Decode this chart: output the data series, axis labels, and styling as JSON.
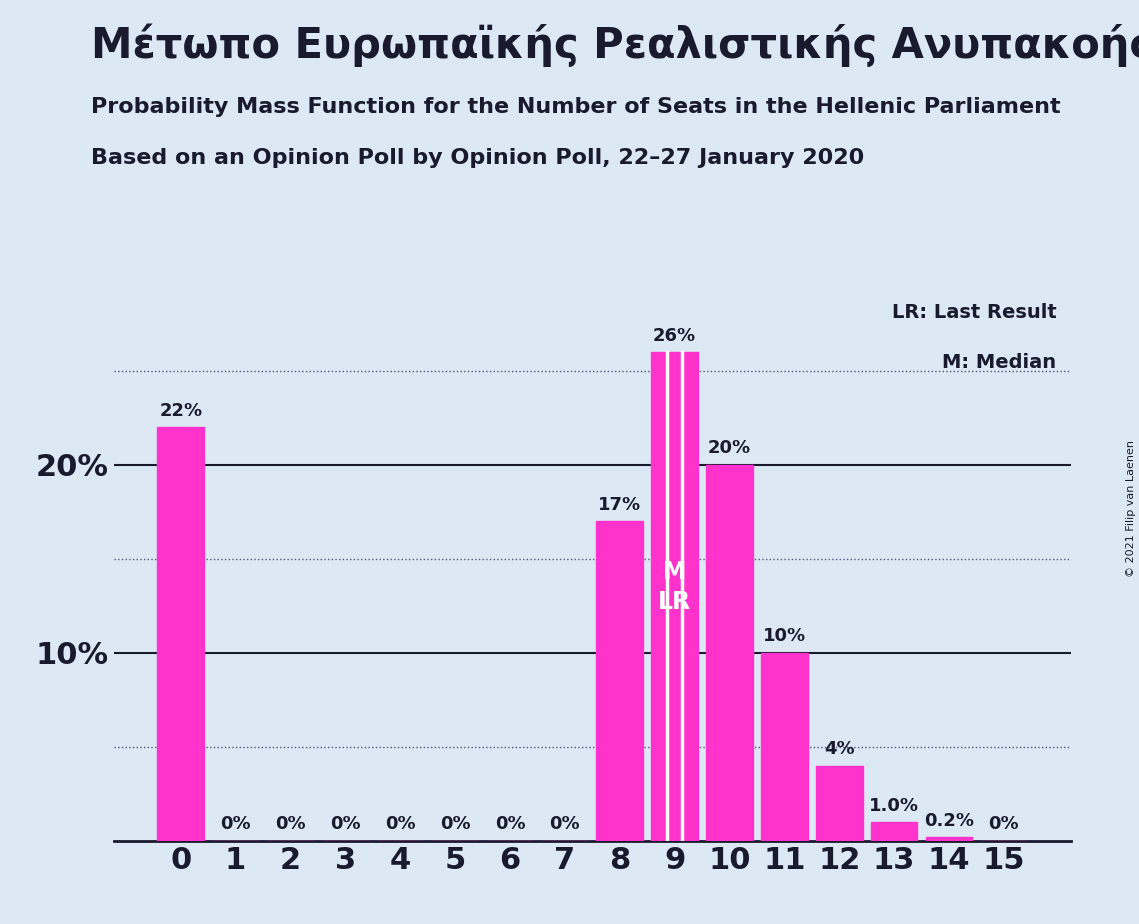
{
  "title": "Μέτωπο Ευρωπαϊκής Ρεαλιστικής Ανυπακοής",
  "subtitle1": "Probability Mass Function for the Number of Seats in the Hellenic Parliament",
  "subtitle2": "Based on an Opinion Poll by Opinion Poll, 22–27 January 2020",
  "copyright": "© 2021 Filip van Laenen",
  "categories": [
    0,
    1,
    2,
    3,
    4,
    5,
    6,
    7,
    8,
    9,
    10,
    11,
    12,
    13,
    14,
    15
  ],
  "values": [
    0.22,
    0.0,
    0.0,
    0.0,
    0.0,
    0.0,
    0.0,
    0.0,
    0.17,
    0.26,
    0.2,
    0.1,
    0.04,
    0.01,
    0.002,
    0.0
  ],
  "labels": [
    "22%",
    "0%",
    "0%",
    "0%",
    "0%",
    "0%",
    "0%",
    "0%",
    "17%",
    "26%",
    "20%",
    "10%",
    "4%",
    "1.0%",
    "0.2%",
    "0%"
  ],
  "bar_color": "#ff33cc",
  "median": 9,
  "last_result": 9,
  "background_color": "#dce8f4",
  "text_color": "#1a1a2e",
  "legend_lr": "LR: Last Result",
  "legend_m": "M: Median",
  "solid_gridlines": [
    0.1,
    0.2
  ],
  "dotted_gridlines": [
    0.05,
    0.15,
    0.25
  ],
  "ytick_positions": [
    0.1,
    0.2
  ],
  "ytick_labels": [
    "10%",
    "20%"
  ],
  "ylim": [
    0,
    0.295
  ]
}
